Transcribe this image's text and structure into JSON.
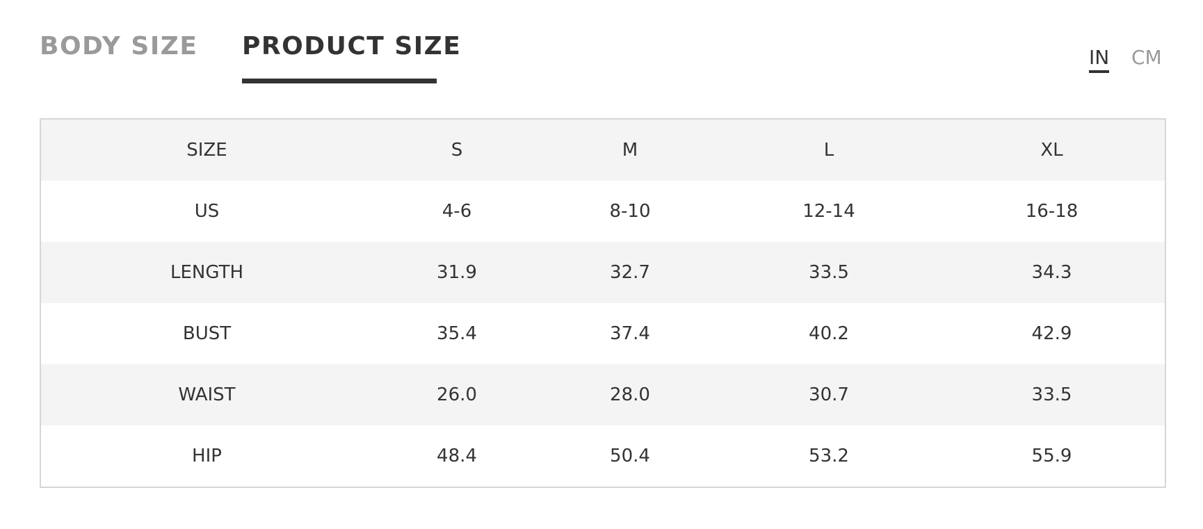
{
  "tabs": [
    "BODY SIZE",
    "PRODUCT SIZE"
  ],
  "units": [
    "IN",
    "CM"
  ],
  "table": {
    "header": [
      "SIZE",
      "S",
      "M",
      "L",
      "XL"
    ],
    "rows": [
      [
        "US",
        "4-6",
        "8-10",
        "12-14",
        "16-18"
      ],
      [
        "LENGTH",
        "31.9",
        "32.7",
        "33.5",
        "34.3"
      ],
      [
        "BUST",
        "35.4",
        "37.4",
        "40.2",
        "42.9"
      ],
      [
        "WAIST",
        "26.0",
        "28.0",
        "30.7",
        "33.5"
      ],
      [
        "HIP",
        "48.4",
        "50.4",
        "53.2",
        "55.9"
      ]
    ]
  }
}
